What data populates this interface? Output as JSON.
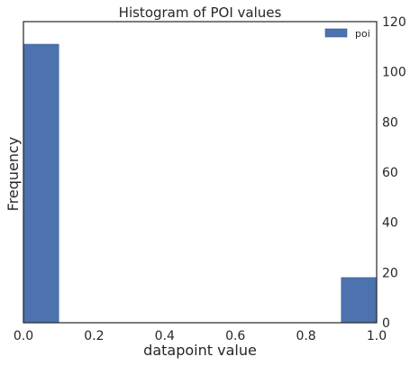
{
  "colors": {
    "bar": "#4c72b0",
    "bar_edge": "#3a5a90",
    "axes": "#262626",
    "background": "#ffffff"
  },
  "chart_data": {
    "type": "bar",
    "title": "Histogram of POI values",
    "xlabel": "datapoint value",
    "ylabel": "Frequency",
    "xlim": [
      0.0,
      1.0
    ],
    "ylim": [
      0,
      120
    ],
    "x_ticks": [
      "0.0",
      "0.2",
      "0.4",
      "0.6",
      "0.8",
      "1.0"
    ],
    "y_ticks": [
      "0",
      "20",
      "40",
      "60",
      "80",
      "100",
      "120"
    ],
    "y_axis_side": "right",
    "bins": [
      {
        "x0": 0.0,
        "x1": 0.1,
        "value": 111
      },
      {
        "x0": 0.9,
        "x1": 1.0,
        "value": 18
      }
    ],
    "series": [
      {
        "name": "poi"
      }
    ],
    "legend_position": "top-right",
    "grid": false
  }
}
